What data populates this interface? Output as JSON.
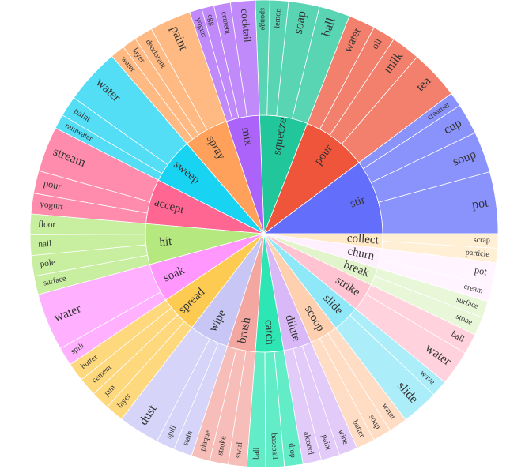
{
  "chart_data": {
    "type": "sunburst",
    "hierarchy": [
      {
        "name": "stir",
        "color": "#636efa",
        "children": [
          {
            "name": "pot",
            "value": 1.5
          },
          {
            "name": "soup",
            "value": 1.0
          },
          {
            "name": "cup",
            "value": 0.75
          },
          {
            "name": "creamer",
            "value": 0.35
          }
        ]
      },
      {
        "name": "pour",
        "color": "#ef553b",
        "children": [
          {
            "name": "tea",
            "value": 1.2
          },
          {
            "name": "milk",
            "value": 0.7
          },
          {
            "name": "oil",
            "value": 0.55
          },
          {
            "name": "water",
            "value": 0.65
          }
        ]
      },
      {
        "name": "squeeze",
        "color": "#21c79a",
        "children": [
          {
            "name": "ball",
            "value": 0.75
          },
          {
            "name": "soap",
            "value": 0.75
          },
          {
            "name": "lemon",
            "value": 0.45
          },
          {
            "name": "sponge",
            "value": 0.35
          }
        ]
      },
      {
        "name": "mix",
        "color": "#ab63fa",
        "children": [
          {
            "name": "cocktail",
            "value": 0.6
          },
          {
            "name": "cement",
            "value": 0.4
          },
          {
            "name": "egg",
            "value": 0.3
          },
          {
            "name": "yogurt",
            "value": 0.3
          }
        ]
      },
      {
        "name": "spray",
        "color": "#ffa15a",
        "children": [
          {
            "name": "paint",
            "value": 1.0
          },
          {
            "name": "deodorant",
            "value": 0.45
          },
          {
            "name": "layer",
            "value": 0.35
          },
          {
            "name": "water",
            "value": 0.35
          }
        ]
      },
      {
        "name": "sweep",
        "color": "#19d3f3",
        "children": [
          {
            "name": "water",
            "value": 1.35
          },
          {
            "name": "paint",
            "value": 0.5
          },
          {
            "name": "rainwater",
            "value": 0.35
          }
        ]
      },
      {
        "name": "accept",
        "color": "#ff6692",
        "children": [
          {
            "name": "stream",
            "value": 1.1
          },
          {
            "name": "pour",
            "value": 0.55
          },
          {
            "name": "yogurt",
            "value": 0.5
          }
        ]
      },
      {
        "name": "hit",
        "color": "#b6e880",
        "children": [
          {
            "name": "floor",
            "value": 0.5
          },
          {
            "name": "nail",
            "value": 0.5
          },
          {
            "name": "pole",
            "value": 0.5
          },
          {
            "name": "surface",
            "value": 0.45
          }
        ]
      },
      {
        "name": "soak",
        "color": "#ff97ff",
        "children": [
          {
            "name": "water",
            "value": 1.4
          },
          {
            "name": "spill",
            "value": 0.45
          }
        ]
      },
      {
        "name": "spread",
        "color": "#fecb52",
        "children": [
          {
            "name": "butter",
            "value": 0.45
          },
          {
            "name": "cement",
            "value": 0.45
          },
          {
            "name": "jam",
            "value": 0.45
          },
          {
            "name": "layer",
            "value": 0.45
          }
        ]
      },
      {
        "name": "wipe",
        "color": "#c8c6f5",
        "children": [
          {
            "name": "dust",
            "value": 1.0
          },
          {
            "name": "spill",
            "value": 0.45
          },
          {
            "name": "stain",
            "value": 0.45
          }
        ]
      },
      {
        "name": "brush",
        "color": "#f4a7a0",
        "children": [
          {
            "name": "plaque",
            "value": 0.45
          },
          {
            "name": "stroke",
            "value": 0.45
          },
          {
            "name": "swirl",
            "value": 0.45
          }
        ]
      },
      {
        "name": "catch",
        "color": "#2ee6b4",
        "children": [
          {
            "name": "ball",
            "value": 0.45
          },
          {
            "name": "baseball",
            "value": 0.45
          },
          {
            "name": "drop",
            "value": 0.45
          }
        ]
      },
      {
        "name": "dilute",
        "color": "#d8b8f7",
        "children": [
          {
            "name": "alcohol",
            "value": 0.45
          },
          {
            "name": "paint",
            "value": 0.45
          },
          {
            "name": "wine",
            "value": 0.45
          }
        ]
      },
      {
        "name": "scoop",
        "color": "#ffd0b0",
        "children": [
          {
            "name": "batter",
            "value": 0.45
          },
          {
            "name": "soup",
            "value": 0.45
          },
          {
            "name": "water",
            "value": 0.45
          }
        ]
      },
      {
        "name": "slide",
        "color": "#8fe8f8",
        "children": [
          {
            "name": "slide",
            "value": 0.9
          },
          {
            "name": "wave",
            "value": 0.4
          }
        ]
      },
      {
        "name": "strike",
        "color": "#ffc3d2",
        "children": [
          {
            "name": "water",
            "value": 0.85
          },
          {
            "name": "ball",
            "value": 0.5
          }
        ]
      },
      {
        "name": "break",
        "color": "#e2f4cc",
        "children": [
          {
            "name": "stone",
            "value": 0.45
          },
          {
            "name": "surface",
            "value": 0.4
          }
        ]
      },
      {
        "name": "churn",
        "color": "#fff0ff",
        "children": [
          {
            "name": "cream",
            "value": 0.4
          },
          {
            "name": "pot",
            "value": 0.55
          }
        ]
      },
      {
        "name": "collect",
        "color": "#ffe9c7",
        "children": [
          {
            "name": "particle",
            "value": 0.35
          },
          {
            "name": "scrap",
            "value": 0.35
          }
        ]
      }
    ]
  }
}
